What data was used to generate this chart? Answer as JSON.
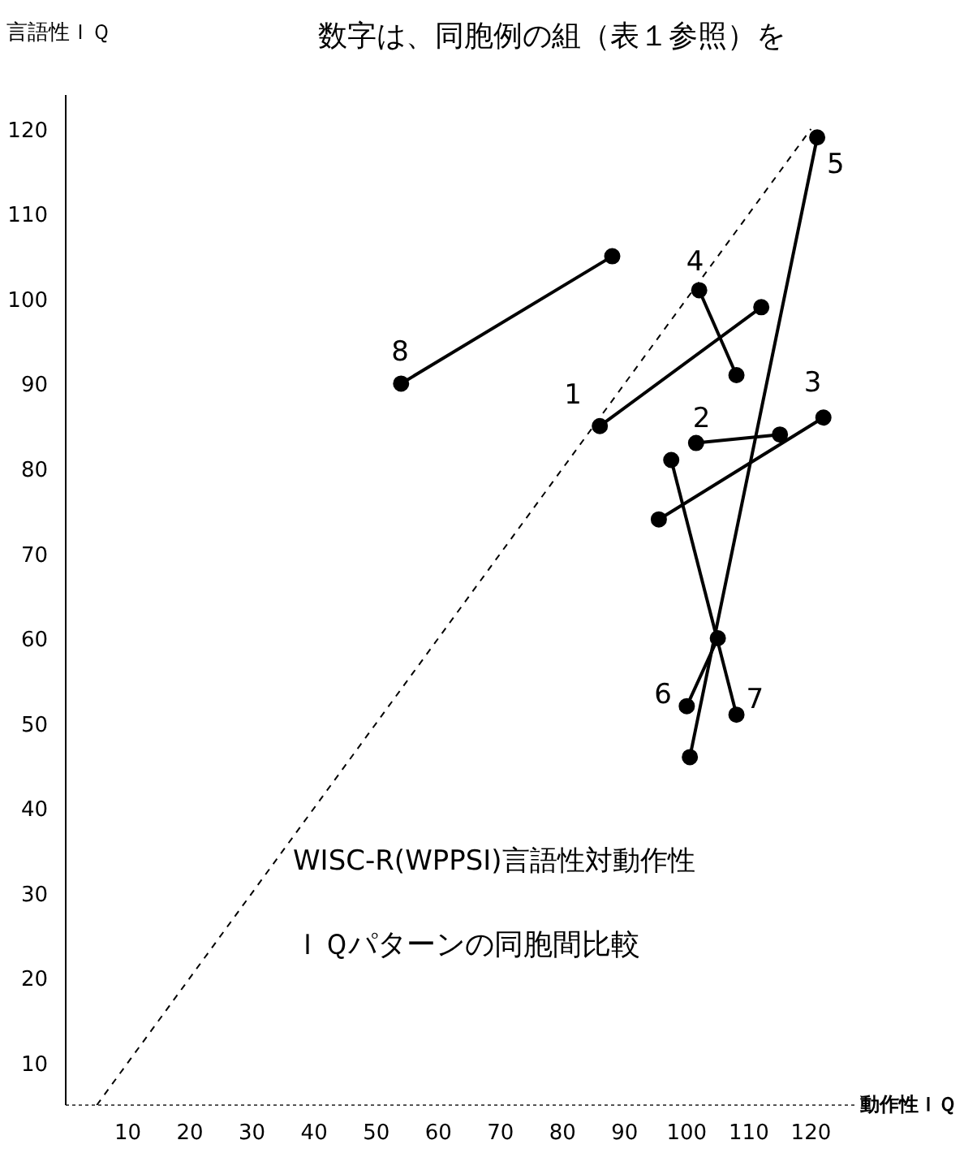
{
  "chart_data": {
    "type": "line",
    "xlabel": "動作性ＩＱ",
    "ylabel": "言語性ＩＱ",
    "xlim": [
      0,
      127
    ],
    "ylim": [
      5,
      124
    ],
    "xticks": [
      10,
      20,
      30,
      40,
      50,
      60,
      70,
      80,
      90,
      100,
      110,
      120
    ],
    "yticks": [
      10,
      20,
      30,
      40,
      50,
      60,
      70,
      80,
      90,
      100,
      110,
      120
    ],
    "grid": false,
    "marker": "circle",
    "line_style": "solid",
    "series": [
      {
        "name": "1",
        "color": "#000000",
        "x": [
          86,
          112
        ],
        "values": [
          85,
          99
        ]
      },
      {
        "name": "2",
        "color": "#000000",
        "x": [
          101.5,
          115
        ],
        "values": [
          83,
          84
        ]
      },
      {
        "name": "3",
        "color": "#000000",
        "x": [
          122,
          95.5
        ],
        "values": [
          86,
          74
        ]
      },
      {
        "name": "4",
        "color": "#000000",
        "x": [
          102,
          108
        ],
        "values": [
          101,
          91
        ]
      },
      {
        "name": "5",
        "color": "#000000",
        "x": [
          121,
          100.5
        ],
        "values": [
          119,
          46
        ]
      },
      {
        "name": "6",
        "color": "#000000",
        "x": [
          100,
          105
        ],
        "values": [
          52,
          60
        ]
      },
      {
        "name": "7",
        "color": "#000000",
        "x": [
          108,
          97.5
        ],
        "values": [
          51,
          81
        ]
      },
      {
        "name": "8",
        "color": "#000000",
        "x": [
          54,
          88
        ],
        "values": [
          90,
          105
        ]
      },
      {
        "color": "#000000",
        "x": [
          5,
          120
        ],
        "values": [
          5,
          120
        ],
        "marker": "none",
        "line_style": "dashed"
      }
    ],
    "annotations": [
      "数字は、同胞例の組（表１参照）を",
      "WISC-R(WPPSI)言語性対動作性",
      "ＩＱパターンの同胞間比較"
    ]
  }
}
